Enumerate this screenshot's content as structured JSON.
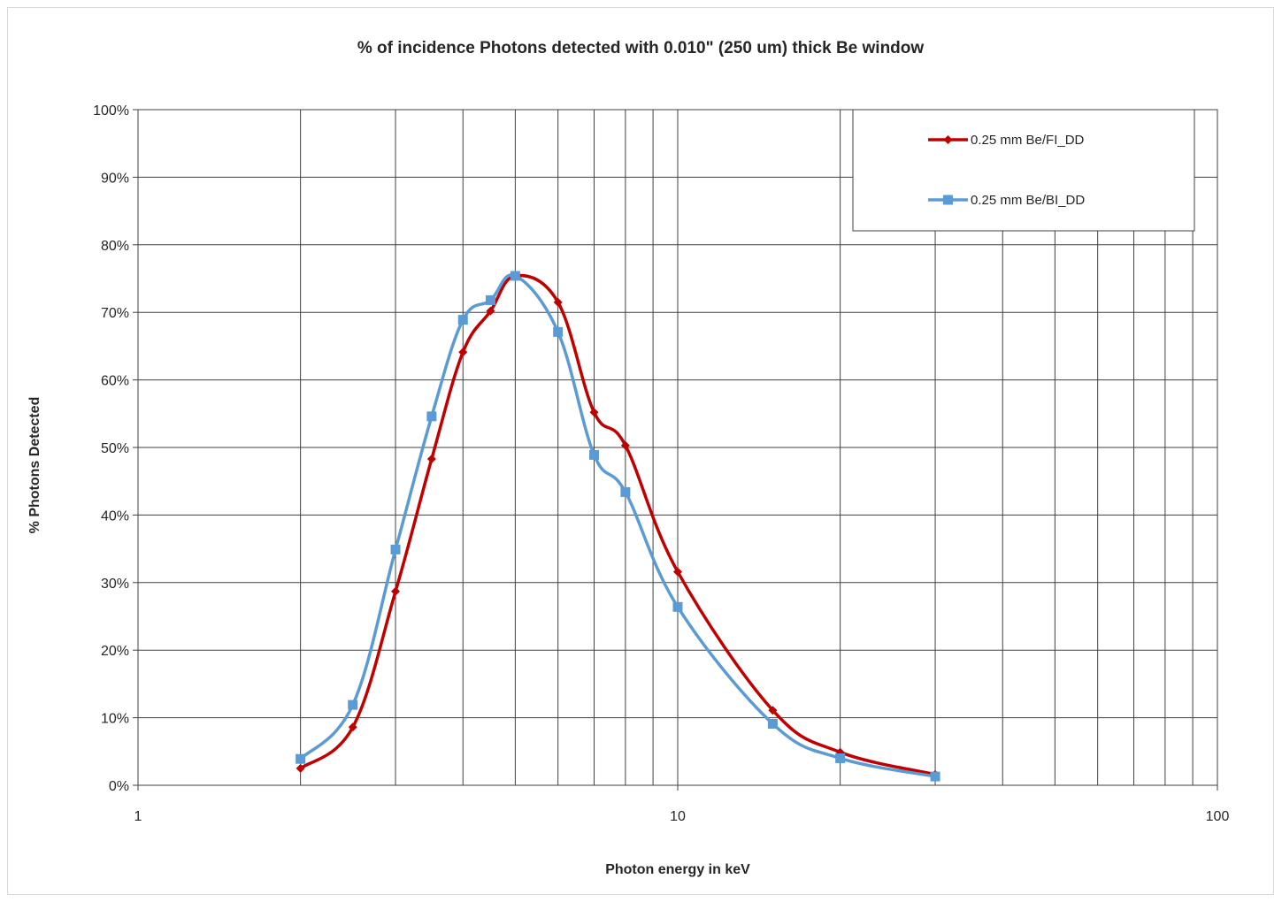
{
  "chart_data": {
    "type": "line",
    "title": "% of incidence Photons detected with 0.010\" (250 um) thick Be window",
    "xlabel": "Photon energy in keV",
    "ylabel": "% Photons Detected",
    "x_scale": "log",
    "xlim": [
      1,
      100
    ],
    "ylim": [
      0,
      100
    ],
    "x_tick_labels": [
      "1",
      "10",
      "100"
    ],
    "y_tick_labels": [
      "0%",
      "10%",
      "20%",
      "30%",
      "40%",
      "50%",
      "60%",
      "70%",
      "80%",
      "90%",
      "100%"
    ],
    "grid": true,
    "legend_position": "top-right",
    "series": [
      {
        "name": "0.25 mm Be/FI_DD",
        "color": "#c00000",
        "marker": "diamond",
        "x": [
          2,
          2.5,
          3,
          3.5,
          4,
          4.5,
          5,
          6,
          7,
          8,
          10,
          15,
          20,
          30
        ],
        "y": [
          2.5,
          8.6,
          28.7,
          48.3,
          64.1,
          70.2,
          75.4,
          71.5,
          55.2,
          50.3,
          31.6,
          11.1,
          4.9,
          1.6
        ]
      },
      {
        "name": "0.25 mm Be/BI_DD",
        "color": "#5b9bd5",
        "marker": "square",
        "x": [
          2,
          2.5,
          3,
          3.5,
          4,
          4.5,
          5,
          6,
          7,
          8,
          10,
          15,
          20,
          30
        ],
        "y": [
          3.9,
          11.9,
          34.9,
          54.6,
          68.9,
          71.8,
          75.4,
          67.1,
          48.9,
          43.4,
          26.4,
          9.1,
          4.0,
          1.3
        ]
      }
    ]
  }
}
